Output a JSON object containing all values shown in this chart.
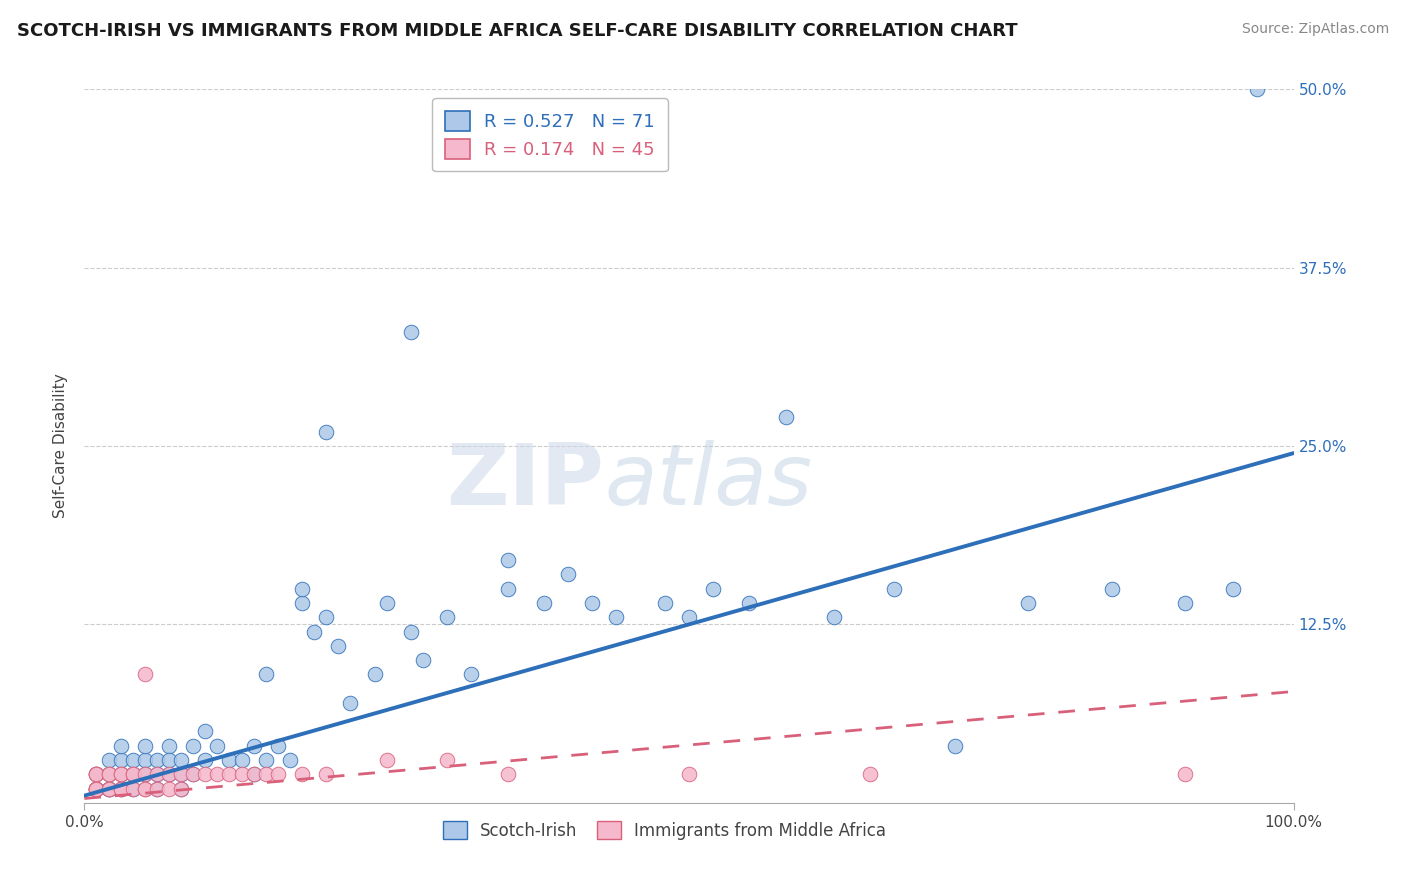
{
  "title": "SCOTCH-IRISH VS IMMIGRANTS FROM MIDDLE AFRICA SELF-CARE DISABILITY CORRELATION CHART",
  "source": "Source: ZipAtlas.com",
  "ylabel": "Self-Care Disability",
  "xlim": [
    0,
    100
  ],
  "ylim": [
    0,
    50
  ],
  "series1_name": "Scotch-Irish",
  "series1_R": 0.527,
  "series1_N": 71,
  "series1_color": "#adc8e8",
  "series1_line_color": "#2e6fba",
  "series2_name": "Immigrants from Middle Africa",
  "series2_R": 0.174,
  "series2_N": 45,
  "series2_color": "#f5b8cc",
  "series2_line_color": "#d9607a",
  "background_color": "#ffffff",
  "grid_color": "#cccccc",
  "slope1": 0.24,
  "intercept1": 0.5,
  "slope2": 0.075,
  "intercept2": 0.3,
  "series1_x": [
    1,
    1,
    2,
    2,
    2,
    2,
    3,
    3,
    3,
    3,
    4,
    4,
    4,
    5,
    5,
    5,
    6,
    6,
    6,
    7,
    7,
    7,
    8,
    8,
    8,
    9,
    9,
    10,
    10,
    11,
    12,
    13,
    14,
    14,
    15,
    16,
    17,
    18,
    18,
    19,
    20,
    21,
    22,
    24,
    25,
    27,
    28,
    30,
    32,
    35,
    38,
    40,
    44,
    48,
    52,
    55,
    58,
    62,
    67,
    72,
    78,
    85,
    91,
    95,
    97,
    15,
    20,
    27,
    35,
    42,
    50
  ],
  "series1_y": [
    1,
    2,
    1,
    2,
    3,
    1,
    2,
    3,
    1,
    4,
    2,
    3,
    1,
    3,
    2,
    4,
    3,
    2,
    1,
    4,
    2,
    3,
    2,
    3,
    1,
    4,
    2,
    5,
    3,
    4,
    3,
    3,
    4,
    2,
    3,
    4,
    3,
    14,
    15,
    12,
    13,
    11,
    7,
    9,
    14,
    12,
    10,
    13,
    9,
    15,
    14,
    16,
    13,
    14,
    15,
    14,
    27,
    13,
    15,
    4,
    14,
    15,
    14,
    15,
    50,
    9,
    26,
    33,
    17,
    14,
    13
  ],
  "series2_x": [
    1,
    1,
    1,
    1,
    1,
    1,
    1,
    1,
    2,
    2,
    2,
    2,
    3,
    3,
    3,
    3,
    4,
    4,
    4,
    5,
    5,
    5,
    6,
    6,
    7,
    7,
    8,
    8,
    9,
    10,
    11,
    12,
    13,
    14,
    15,
    5,
    16,
    18,
    20,
    35,
    50,
    65,
    91,
    25,
    30
  ],
  "series2_y": [
    1,
    1,
    2,
    1,
    2,
    1,
    1,
    2,
    1,
    2,
    1,
    2,
    1,
    2,
    1,
    2,
    2,
    1,
    2,
    1,
    2,
    1,
    2,
    1,
    2,
    1,
    2,
    1,
    2,
    2,
    2,
    2,
    2,
    2,
    2,
    9,
    2,
    2,
    2,
    2,
    2,
    2,
    2,
    3,
    3
  ]
}
